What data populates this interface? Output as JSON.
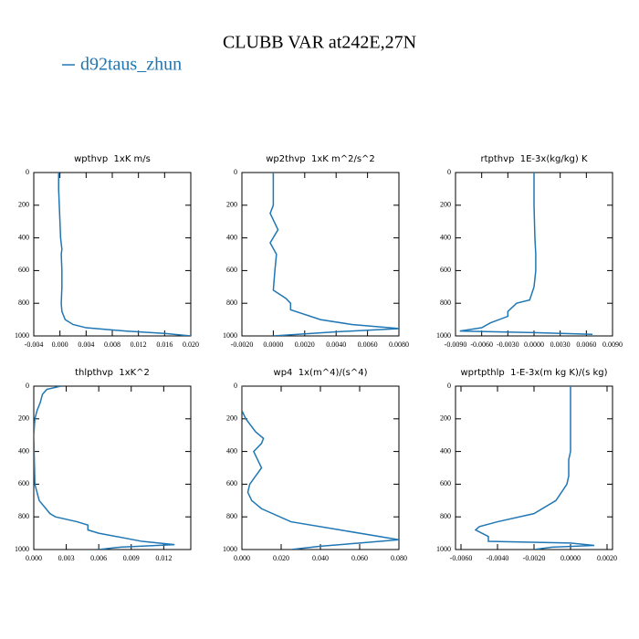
{
  "title": "CLUBB VAR at242E,27N",
  "legend": [
    {
      "name": "d92taus_zhun",
      "color": "#2077b4"
    }
  ],
  "chart_data": [
    {
      "type": "line",
      "title": "wpthvp  1xK m/s",
      "xlim": [
        -0.004,
        0.02
      ],
      "xticks": [
        {
          "value": -0.004,
          "label": "-0.004"
        },
        {
          "value": 0,
          "label": "0.000"
        },
        {
          "value": 0.004,
          "label": "0.004"
        },
        {
          "value": 0.008,
          "label": "0.008"
        },
        {
          "value": 0.012,
          "label": "0.012"
        },
        {
          "value": 0.016,
          "label": "0.016"
        },
        {
          "value": 0.02,
          "label": "0.020"
        }
      ],
      "ylim": [
        1000,
        0
      ],
      "yticks": [
        0,
        200,
        400,
        600,
        800,
        1000
      ],
      "series": [
        {
          "y": [
            0,
            100,
            200,
            300,
            400,
            470,
            500,
            600,
            700,
            800,
            850,
            900,
            930,
            950,
            970,
            985,
            1000
          ],
          "x": [
            -0.0002,
            -0.0002,
            -0.0001,
            0.0,
            0.0001,
            0.0003,
            0.0002,
            0.0003,
            0.0003,
            0.0002,
            0.0003,
            0.0008,
            0.002,
            0.004,
            0.01,
            0.016,
            0.02
          ]
        }
      ]
    },
    {
      "type": "line",
      "title": "wp2thvp  1xK m^2/s^2",
      "xlim": [
        -0.002,
        0.008
      ],
      "xticks": [
        {
          "value": -0.002,
          "label": "-0.0020"
        },
        {
          "value": 0,
          "label": "0.0000"
        },
        {
          "value": 0.002,
          "label": "0.0020"
        },
        {
          "value": 0.004,
          "label": "0.0040"
        },
        {
          "value": 0.006,
          "label": "0.0060"
        },
        {
          "value": 0.008,
          "label": "0.0080"
        }
      ],
      "ylim": [
        1000,
        0
      ],
      "yticks": [
        0,
        200,
        400,
        600,
        800,
        1000
      ],
      "series": [
        {
          "y": [
            0,
            100,
            200,
            250,
            350,
            430,
            500,
            600,
            720,
            770,
            800,
            840,
            900,
            930,
            955,
            975,
            1000
          ],
          "x": [
            0.0,
            0.0,
            0.0,
            -0.0002,
            0.0003,
            -0.0002,
            0.0002,
            0.0001,
            0.0,
            0.0008,
            0.0011,
            0.0011,
            0.003,
            0.005,
            0.008,
            0.004,
            0.0
          ]
        }
      ]
    },
    {
      "type": "line",
      "title": "rtpthvp  1E-3x(kg/kg) K",
      "xlim": [
        -0.009,
        0.009
      ],
      "xticks": [
        {
          "value": -0.009,
          "label": "-0.0090"
        },
        {
          "value": -0.006,
          "label": "-0.0060"
        },
        {
          "value": -0.003,
          "label": "-0.0030"
        },
        {
          "value": 0,
          "label": "0.0000"
        },
        {
          "value": 0.003,
          "label": "0.0030"
        },
        {
          "value": 0.006,
          "label": "0.0060"
        },
        {
          "value": 0.009,
          "label": "0.0090"
        }
      ],
      "ylim": [
        1000,
        0
      ],
      "yticks": [
        0,
        200,
        400,
        600,
        800,
        1000
      ],
      "series": [
        {
          "y": [
            0,
            200,
            400,
            500,
            600,
            700,
            780,
            800,
            850,
            880,
            920,
            950,
            970,
            980,
            990
          ],
          "x": [
            0.0,
            0.0,
            0.0001,
            0.0002,
            0.0002,
            0.0,
            -0.0005,
            -0.002,
            -0.003,
            -0.003,
            -0.005,
            -0.006,
            -0.0085,
            0.0,
            0.0067
          ]
        }
      ]
    },
    {
      "type": "line",
      "title": "thlpthvp  1xK^2",
      "xlim": [
        0,
        0.0145
      ],
      "xticks": [
        {
          "value": 0,
          "label": "0.000"
        },
        {
          "value": 0.003,
          "label": "0.003"
        },
        {
          "value": 0.006,
          "label": "0.006"
        },
        {
          "value": 0.009,
          "label": "0.009"
        },
        {
          "value": 0.012,
          "label": "0.012"
        }
      ],
      "ylim": [
        1000,
        0
      ],
      "yticks": [
        0,
        200,
        400,
        600,
        800,
        1000
      ],
      "series": [
        {
          "y": [
            0,
            20,
            50,
            100,
            150,
            200,
            300,
            600,
            700,
            780,
            800,
            830,
            850,
            880,
            900,
            950,
            970,
            985,
            1000
          ],
          "x": [
            0.0025,
            0.0012,
            0.0008,
            0.0006,
            0.0003,
            0.0001,
            0.0,
            0.0001,
            0.0005,
            0.0015,
            0.002,
            0.004,
            0.005,
            0.005,
            0.006,
            0.01,
            0.013,
            0.008,
            0.006
          ]
        }
      ]
    },
    {
      "type": "line",
      "title": "wp4  1x(m^4)/(s^4)",
      "xlim": [
        0,
        0.08
      ],
      "xticks": [
        {
          "value": 0,
          "label": "0.000"
        },
        {
          "value": 0.02,
          "label": "0.020"
        },
        {
          "value": 0.04,
          "label": "0.040"
        },
        {
          "value": 0.06,
          "label": "0.060"
        },
        {
          "value": 0.08,
          "label": "0.080"
        }
      ],
      "ylim": [
        1000,
        0
      ],
      "yticks": [
        0,
        200,
        400,
        600,
        800,
        1000
      ],
      "series": [
        {
          "y": [
            0,
            150,
            200,
            280,
            320,
            350,
            400,
            450,
            500,
            550,
            600,
            650,
            700,
            750,
            830,
            880,
            940,
            960,
            980,
            1000
          ],
          "x": [
            0.0,
            0.0,
            0.002,
            0.007,
            0.011,
            0.01,
            0.006,
            0.008,
            0.01,
            0.007,
            0.004,
            0.003,
            0.005,
            0.01,
            0.025,
            0.05,
            0.08,
            0.06,
            0.04,
            0.025
          ]
        }
      ]
    },
    {
      "type": "line",
      "title": "wprtpthlp  1-E-3x(m kg K)/(s kg)",
      "xlim": [
        -0.0063,
        0.0023
      ],
      "xticks": [
        {
          "value": -0.006,
          "label": "-0.0060"
        },
        {
          "value": -0.004,
          "label": "-0.0040"
        },
        {
          "value": -0.002,
          "label": "-0.0020"
        },
        {
          "value": 0,
          "label": "0.0000"
        },
        {
          "value": 0.002,
          "label": "0.0020"
        }
      ],
      "ylim": [
        1000,
        0
      ],
      "yticks": [
        0,
        200,
        400,
        600,
        800,
        1000
      ],
      "series": [
        {
          "y": [
            0,
            400,
            450,
            550,
            600,
            700,
            780,
            830,
            860,
            880,
            920,
            950,
            960,
            975,
            985,
            1000
          ],
          "x": [
            0.0,
            0.0,
            -0.0001,
            -0.0001,
            -0.0002,
            -0.0008,
            -0.002,
            -0.004,
            -0.005,
            -0.0052,
            -0.0045,
            -0.0045,
            0.0,
            0.0013,
            -0.001,
            -0.002
          ]
        }
      ]
    }
  ]
}
